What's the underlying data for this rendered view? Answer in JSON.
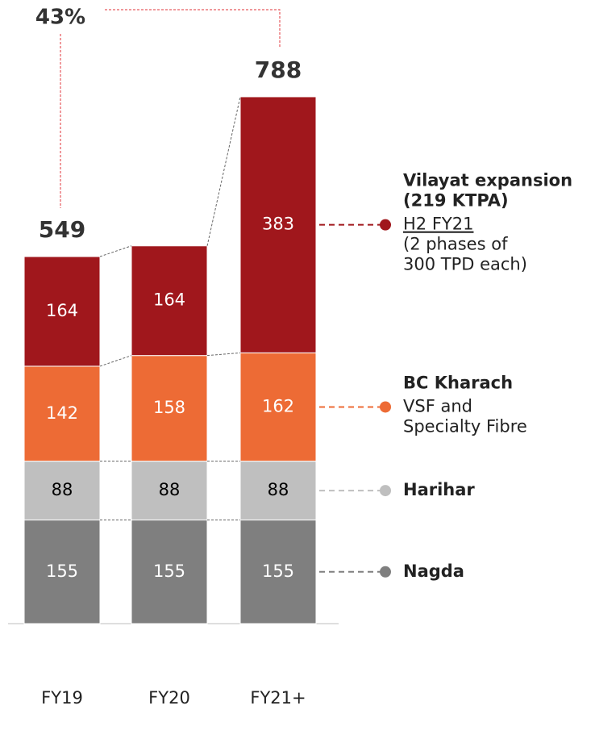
{
  "chart_data": {
    "type": "stacked_bar",
    "categories": [
      "FY19",
      "FY20",
      "FY21+"
    ],
    "series": [
      {
        "name": "Nagda",
        "color": "#7f7f7f",
        "text_color": "#ffffff",
        "values": [
          155,
          155,
          155
        ]
      },
      {
        "name": "Harihar",
        "color": "#bfbfbf",
        "text_color": "#000000",
        "values": [
          88,
          88,
          88
        ]
      },
      {
        "name": "BC Kharach",
        "color": "#ed6b35",
        "text_color": "#ffffff",
        "values": [
          142,
          158,
          162
        ],
        "details": [
          "VSF and",
          "Specialty Fibre"
        ]
      },
      {
        "name": "Vilayat expansion (219 KTPA)",
        "color": "#a0171c",
        "text_color": "#ffffff",
        "values": [
          164,
          164,
          383
        ],
        "details": [
          "H2 FY21",
          "(2 phases of",
          "300 TPD each)"
        ]
      }
    ],
    "totals": [
      549,
      null,
      788
    ],
    "growth": {
      "value": 43,
      "label": "43%",
      "color": "#e0333a"
    },
    "ylim": [
      0,
      800
    ]
  }
}
